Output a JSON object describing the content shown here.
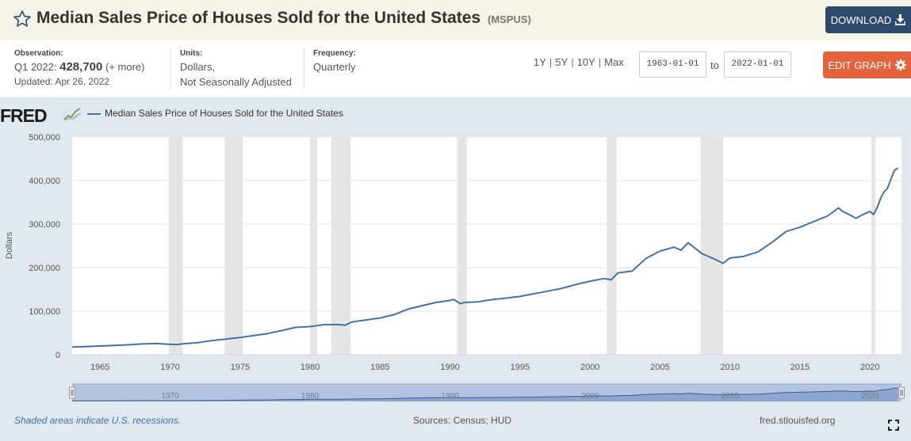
{
  "header": {
    "title": "Median Sales Price of Houses Sold for the United States",
    "series_id": "(MSPUS)",
    "download_label": "DOWNLOAD",
    "star_icon": "star-outline-icon",
    "download_icon": "download-icon"
  },
  "meta": {
    "observation_label": "Observation:",
    "observation_period": "Q1 2022:",
    "observation_value": "428,700",
    "observation_more": "(+ more)",
    "updated": "Updated: Apr 26, 2022",
    "units_label": "Units:",
    "units_line1": "Dollars,",
    "units_line2": "Not Seasonally Adjusted",
    "frequency_label": "Frequency:",
    "frequency_value": "Quarterly"
  },
  "range_buttons": [
    "1Y",
    "5Y",
    "10Y",
    "Max"
  ],
  "range_separator": "|",
  "date_start": "1963-01-01",
  "date_to_label": "to",
  "date_end": "2022-01-01",
  "edit_graph_label": "EDIT GRAPH",
  "edit_icon": "gear-icon",
  "graph": {
    "logo_text": "FRED",
    "logo_icon": "fred-chart-icon",
    "legend_label": "Median Sales Price of Houses Sold for the United States",
    "footer_note": "Shaded areas indicate U.S. recessions.",
    "sources": "Sources: Census; HUD",
    "site": "fred.stlouisfed.org",
    "fullscreen_icon": "fullscreen-icon"
  },
  "colors": {
    "series": "#4572a7",
    "recession_shade": "#e5e5e5",
    "download_button": "#2d4a6d",
    "edit_button": "#e4633c",
    "header_bg": "#f4f5e6",
    "panel_bg": "#e1e9f0"
  },
  "chart_data": {
    "type": "line",
    "ylabel": "Dollars",
    "xlim": [
      1963.0,
      2022.25
    ],
    "ylim": [
      0,
      500000
    ],
    "y_ticks": [
      0,
      100000,
      200000,
      300000,
      400000,
      500000
    ],
    "y_tick_labels": [
      "0",
      "100,000",
      "200,000",
      "300,000",
      "400,000",
      "500,000"
    ],
    "x_ticks": [
      1965,
      1970,
      1975,
      1980,
      1985,
      1990,
      1995,
      2000,
      2005,
      2010,
      2015,
      2020
    ],
    "navigator_ticks": [
      1970,
      1980,
      1990,
      2000,
      2010,
      2020
    ],
    "grid": true,
    "recessions": [
      [
        1969.9,
        1970.9
      ],
      [
        1973.9,
        1975.2
      ],
      [
        1980.0,
        1980.5
      ],
      [
        1981.5,
        1982.9
      ],
      [
        1990.5,
        1991.2
      ],
      [
        2001.2,
        2001.9
      ],
      [
        2007.9,
        2009.5
      ],
      [
        2020.1,
        2020.4
      ]
    ],
    "series": [
      {
        "name": "Median Sales Price of Houses Sold for the United States",
        "x": [
          1963.0,
          1964.0,
          1965.0,
          1966.0,
          1967.0,
          1968.0,
          1969.0,
          1970.0,
          1970.5,
          1971.0,
          1972.0,
          1973.0,
          1974.0,
          1975.0,
          1976.0,
          1977.0,
          1978.0,
          1979.0,
          1980.0,
          1981.0,
          1982.0,
          1982.5,
          1983.0,
          1984.0,
          1985.0,
          1986.0,
          1987.0,
          1988.0,
          1989.0,
          1990.0,
          1990.25,
          1990.75,
          1991.0,
          1992.0,
          1993.0,
          1994.0,
          1995.0,
          1996.0,
          1997.0,
          1998.0,
          1999.0,
          2000.0,
          2001.0,
          2001.5,
          2002.0,
          2003.0,
          2004.0,
          2005.0,
          2006.0,
          2006.5,
          2007.0,
          2007.5,
          2008.0,
          2009.0,
          2009.5,
          2010.0,
          2011.0,
          2012.0,
          2013.0,
          2014.0,
          2015.0,
          2016.0,
          2017.0,
          2017.75,
          2018.0,
          2018.5,
          2019.0,
          2019.5,
          2020.0,
          2020.25,
          2020.5,
          2020.75,
          2021.0,
          2021.25,
          2021.5,
          2021.75,
          2022.0
        ],
        "y": [
          17800,
          18500,
          20000,
          21500,
          22700,
          24700,
          25600,
          23900,
          23500,
          25200,
          27600,
          32500,
          35900,
          39500,
          44200,
          48800,
          55700,
          62900,
          64600,
          68900,
          69300,
          67800,
          75300,
          79900,
          84300,
          92000,
          104500,
          112500,
          120000,
          124500,
          127000,
          117000,
          120000,
          121500,
          126500,
          130000,
          133900,
          140000,
          146000,
          152500,
          161000,
          169000,
          175000,
          172000,
          188000,
          192000,
          221000,
          238000,
          247000,
          240000,
          257000,
          245000,
          232000,
          218000,
          210000,
          222000,
          226000,
          236000,
          258000,
          283000,
          293000,
          306000,
          319000,
          337000,
          330000,
          322000,
          313000,
          322000,
          329000,
          322000,
          337000,
          358000,
          374000,
          382000,
          404000,
          423600,
          428700
        ]
      }
    ]
  }
}
